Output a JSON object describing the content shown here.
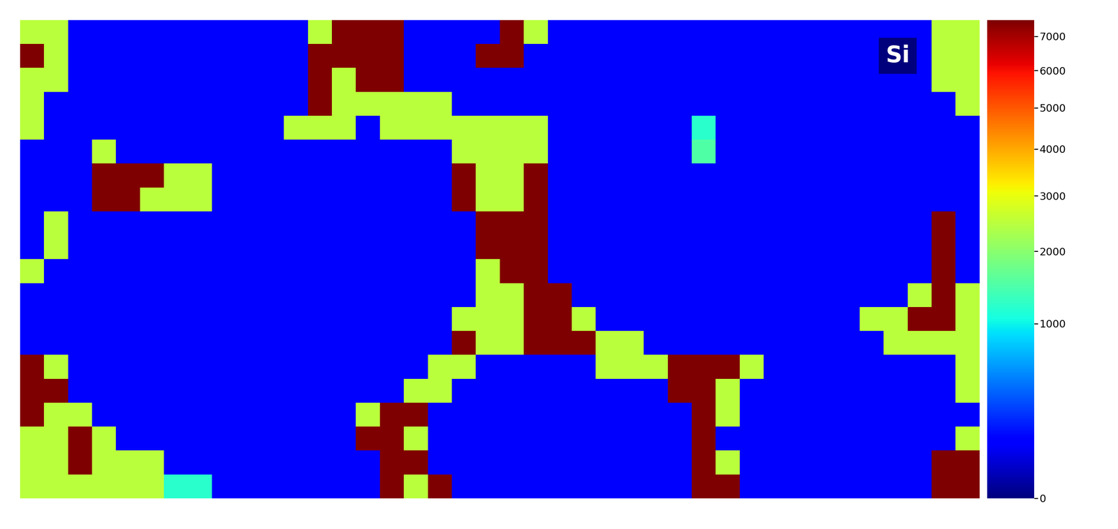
{
  "chart_data": {
    "type": "heatmap",
    "color": "jet",
    "tick_labels": false,
    "annotations": [
      "Si"
    ],
    "colorbar_range": [
      0,
      7500
    ],
    "colorbar_ticks": [
      0,
      1000,
      2000,
      3000,
      4000,
      5000,
      6000,
      7000
    ],
    "cells": [
      [
        2500,
        2500,
        100,
        100,
        100,
        100,
        100,
        100,
        100,
        100,
        100,
        100,
        2500,
        7500,
        7500,
        7500,
        100,
        100,
        100,
        100,
        7500,
        2500,
        100,
        100,
        100,
        100,
        100,
        100,
        100,
        100,
        100,
        100,
        100,
        100,
        100,
        100,
        100,
        100,
        2500,
        2500
      ],
      [
        7500,
        2500,
        100,
        100,
        100,
        100,
        100,
        100,
        100,
        100,
        100,
        100,
        7500,
        7500,
        7500,
        7500,
        100,
        100,
        100,
        7500,
        7500,
        100,
        100,
        100,
        100,
        100,
        100,
        100,
        100,
        100,
        100,
        100,
        100,
        100,
        100,
        100,
        100,
        100,
        2500,
        2500
      ],
      [
        2500,
        2500,
        100,
        100,
        100,
        100,
        100,
        100,
        100,
        100,
        100,
        100,
        7500,
        2500,
        7500,
        7500,
        100,
        100,
        100,
        100,
        100,
        100,
        100,
        100,
        100,
        100,
        100,
        100,
        100,
        100,
        100,
        100,
        100,
        100,
        100,
        100,
        100,
        100,
        2500,
        2500
      ],
      [
        2500,
        100,
        100,
        100,
        100,
        100,
        100,
        100,
        100,
        100,
        100,
        100,
        7500,
        2500,
        2500,
        2500,
        2500,
        2500,
        100,
        100,
        100,
        100,
        100,
        100,
        100,
        100,
        100,
        100,
        100,
        100,
        100,
        100,
        100,
        100,
        100,
        100,
        100,
        100,
        100,
        2500
      ],
      [
        2500,
        100,
        100,
        100,
        100,
        100,
        100,
        100,
        100,
        100,
        100,
        2500,
        2500,
        2500,
        100,
        2500,
        2500,
        2500,
        2500,
        2500,
        2500,
        2500,
        100,
        100,
        100,
        100,
        100,
        100,
        1200,
        100,
        100,
        100,
        100,
        100,
        100,
        100,
        100,
        100,
        100,
        100
      ],
      [
        100,
        100,
        100,
        2500,
        100,
        100,
        100,
        100,
        100,
        100,
        100,
        100,
        100,
        100,
        100,
        100,
        100,
        100,
        2500,
        2500,
        2500,
        2500,
        100,
        100,
        100,
        100,
        100,
        100,
        1500,
        100,
        100,
        100,
        100,
        100,
        100,
        100,
        100,
        100,
        100,
        100
      ],
      [
        100,
        100,
        100,
        7500,
        7500,
        7500,
        2500,
        2500,
        100,
        100,
        100,
        100,
        100,
        100,
        100,
        100,
        100,
        100,
        7500,
        2500,
        2500,
        7500,
        100,
        100,
        100,
        100,
        100,
        100,
        100,
        100,
        100,
        100,
        100,
        100,
        100,
        100,
        100,
        100,
        100,
        100
      ],
      [
        100,
        100,
        100,
        7500,
        7500,
        2500,
        2500,
        2500,
        100,
        100,
        100,
        100,
        100,
        100,
        100,
        100,
        100,
        100,
        7500,
        2500,
        2500,
        7500,
        100,
        100,
        100,
        100,
        100,
        100,
        100,
        100,
        100,
        100,
        100,
        100,
        100,
        100,
        100,
        100,
        100,
        100
      ],
      [
        100,
        2500,
        100,
        100,
        100,
        100,
        100,
        100,
        100,
        100,
        100,
        100,
        100,
        100,
        100,
        100,
        100,
        100,
        100,
        7500,
        7500,
        7500,
        100,
        100,
        100,
        100,
        100,
        100,
        100,
        100,
        100,
        100,
        100,
        100,
        100,
        100,
        100,
        100,
        7500,
        100
      ],
      [
        100,
        2500,
        100,
        100,
        100,
        100,
        100,
        100,
        100,
        100,
        100,
        100,
        100,
        100,
        100,
        100,
        100,
        100,
        100,
        7500,
        7500,
        7500,
        100,
        100,
        100,
        100,
        100,
        100,
        100,
        100,
        100,
        100,
        100,
        100,
        100,
        100,
        100,
        100,
        7500,
        100
      ],
      [
        2500,
        100,
        100,
        100,
        100,
        100,
        100,
        100,
        100,
        100,
        100,
        100,
        100,
        100,
        100,
        100,
        100,
        100,
        100,
        2500,
        7500,
        7500,
        100,
        100,
        100,
        100,
        100,
        100,
        100,
        100,
        100,
        100,
        100,
        100,
        100,
        100,
        100,
        100,
        7500,
        100
      ],
      [
        100,
        100,
        100,
        100,
        100,
        100,
        100,
        100,
        100,
        100,
        100,
        100,
        100,
        100,
        100,
        100,
        100,
        100,
        100,
        2500,
        2500,
        7500,
        7500,
        100,
        100,
        100,
        100,
        100,
        100,
        100,
        100,
        100,
        100,
        100,
        100,
        100,
        100,
        2500,
        7500,
        2500
      ],
      [
        100,
        100,
        100,
        100,
        100,
        100,
        100,
        100,
        100,
        100,
        100,
        100,
        100,
        100,
        100,
        100,
        100,
        100,
        2500,
        2500,
        2500,
        7500,
        7500,
        2500,
        100,
        100,
        100,
        100,
        100,
        100,
        100,
        100,
        100,
        100,
        100,
        2500,
        2500,
        7500,
        7500,
        2500
      ],
      [
        100,
        100,
        100,
        100,
        100,
        100,
        100,
        100,
        100,
        100,
        100,
        100,
        100,
        100,
        100,
        100,
        100,
        100,
        7500,
        2500,
        2500,
        7500,
        7500,
        7500,
        2500,
        2500,
        100,
        100,
        100,
        100,
        100,
        100,
        100,
        100,
        100,
        100,
        2500,
        2500,
        2500,
        2500
      ],
      [
        7500,
        2500,
        100,
        100,
        100,
        100,
        100,
        100,
        100,
        100,
        100,
        100,
        100,
        100,
        100,
        100,
        100,
        2500,
        2500,
        100,
        100,
        100,
        100,
        100,
        2500,
        2500,
        2500,
        7500,
        7500,
        7500,
        2500,
        100,
        100,
        100,
        100,
        100,
        100,
        100,
        100,
        2500
      ],
      [
        7500,
        7500,
        100,
        100,
        100,
        100,
        100,
        100,
        100,
        100,
        100,
        100,
        100,
        100,
        100,
        100,
        2500,
        2500,
        100,
        100,
        100,
        100,
        100,
        100,
        100,
        100,
        100,
        7500,
        7500,
        2500,
        100,
        100,
        100,
        100,
        100,
        100,
        100,
        100,
        100,
        2500
      ],
      [
        7500,
        2500,
        2500,
        100,
        100,
        100,
        100,
        100,
        100,
        100,
        100,
        100,
        100,
        100,
        2500,
        7500,
        7500,
        100,
        100,
        100,
        100,
        100,
        100,
        100,
        100,
        100,
        100,
        100,
        7500,
        2500,
        100,
        100,
        100,
        100,
        100,
        100,
        100,
        100,
        100,
        100
      ],
      [
        2500,
        2500,
        7500,
        2500,
        100,
        100,
        100,
        100,
        100,
        100,
        100,
        100,
        100,
        100,
        7500,
        7500,
        2500,
        100,
        100,
        100,
        100,
        100,
        100,
        100,
        100,
        100,
        100,
        100,
        7500,
        100,
        100,
        100,
        100,
        100,
        100,
        100,
        100,
        100,
        100,
        2500
      ],
      [
        2500,
        2500,
        7500,
        2500,
        2500,
        2500,
        100,
        100,
        100,
        100,
        100,
        100,
        100,
        100,
        100,
        7500,
        7500,
        100,
        100,
        100,
        100,
        100,
        100,
        100,
        100,
        100,
        100,
        100,
        7500,
        2500,
        100,
        100,
        100,
        100,
        100,
        100,
        100,
        100,
        7500,
        7500
      ],
      [
        2500,
        2500,
        2500,
        2500,
        2500,
        2500,
        1200,
        1200,
        100,
        100,
        100,
        100,
        100,
        100,
        100,
        7500,
        2500,
        7500,
        100,
        100,
        100,
        100,
        100,
        100,
        100,
        100,
        100,
        100,
        7500,
        7500,
        100,
        100,
        100,
        100,
        100,
        100,
        100,
        100,
        7500,
        7500
      ]
    ]
  }
}
